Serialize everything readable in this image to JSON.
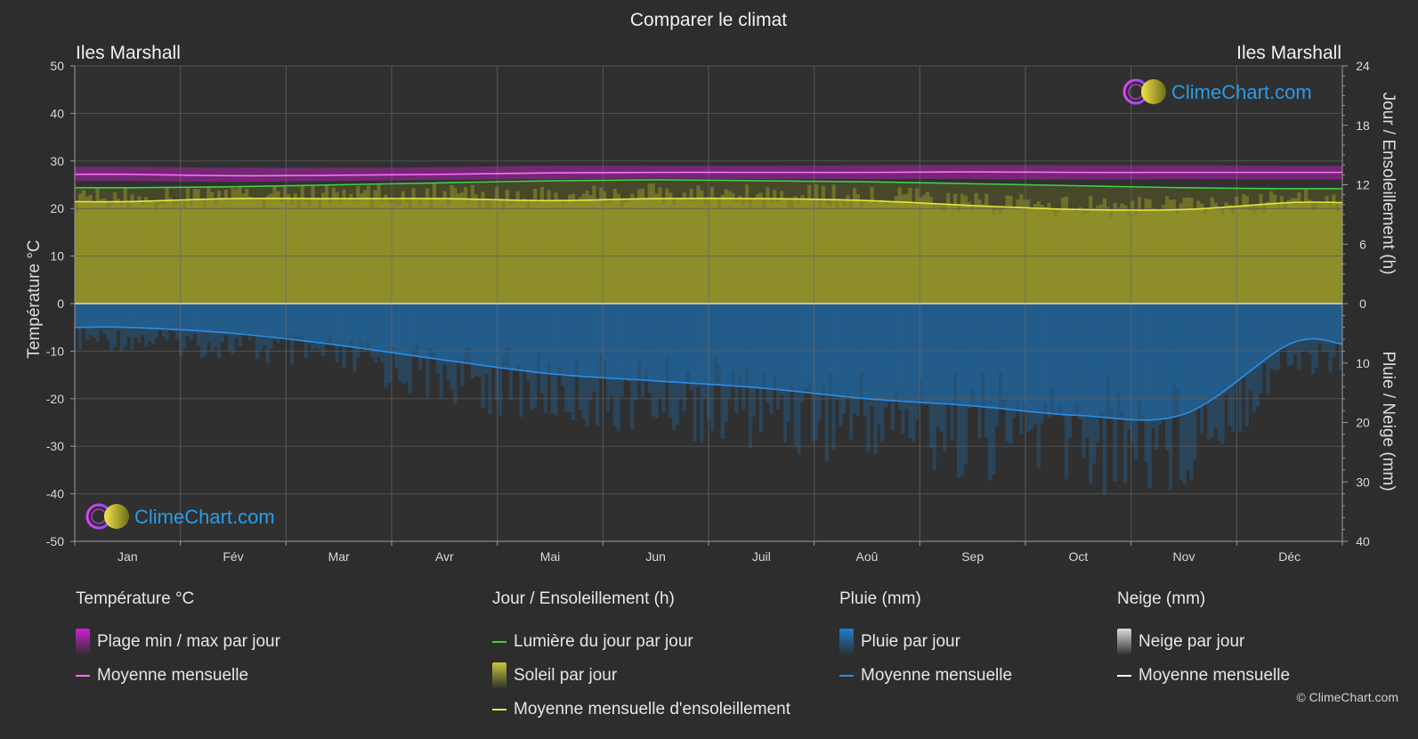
{
  "title": "Comparer le climat",
  "location_left": "Iles Marshall",
  "location_right": "Iles Marshall",
  "axis_left_label": "Température °C",
  "axis_right_top_label": "Jour / Ensoleillement (h)",
  "axis_right_bottom_label": "Pluie / Neige (mm)",
  "brand": "ClimeChart.com",
  "copyright": "© ClimeChart.com",
  "colors": {
    "background": "#2d2d2d",
    "temp_band": "#c81fc8",
    "temp_mean": "#ff6bff",
    "daylight": "#3fd13f",
    "sunshine_fill": "#9a9a2a",
    "sunshine_mean": "#e6e640",
    "rain": "#1e6fb0",
    "rain_mean": "#2a8ee8",
    "snow_mean": "#ffffff",
    "brand_text": "#2a9be8"
  },
  "legend": {
    "temperature": {
      "heading": "Température °C",
      "items": [
        {
          "label": "Plage min / max par jour",
          "swatch": "box",
          "color": "#d21fd2"
        },
        {
          "label": "Moyenne mensuelle",
          "swatch": "line",
          "color": "#ff6bff"
        }
      ]
    },
    "sun": {
      "heading": "Jour / Ensoleillement (h)",
      "items": [
        {
          "label": "Lumière du jour par jour",
          "swatch": "line",
          "color": "#3fd13f"
        },
        {
          "label": "Soleil par jour",
          "swatch": "box",
          "color": "#c8c83a"
        },
        {
          "label": "Moyenne mensuelle d'ensoleillement",
          "swatch": "line",
          "color": "#e6e640"
        }
      ]
    },
    "rain": {
      "heading": "Pluie (mm)",
      "items": [
        {
          "label": "Pluie par jour",
          "swatch": "box",
          "color": "#1e7fd0"
        },
        {
          "label": "Moyenne mensuelle",
          "swatch": "line",
          "color": "#2a8ee8"
        }
      ]
    },
    "snow": {
      "heading": "Neige (mm)",
      "items": [
        {
          "label": "Neige par jour",
          "swatch": "box",
          "color": "#dddddd"
        },
        {
          "label": "Moyenne mensuelle",
          "swatch": "line",
          "color": "#ffffff"
        }
      ]
    }
  },
  "chart_data": {
    "type": "line",
    "title": "Comparer le climat",
    "months": [
      "Jan",
      "Fév",
      "Mar",
      "Avr",
      "Mai",
      "Jun",
      "Juil",
      "Aoû",
      "Sep",
      "Oct",
      "Nov",
      "Déc"
    ],
    "temp_axis": {
      "label": "Température °C",
      "range": [
        -50,
        50
      ],
      "ticks": [
        50,
        40,
        30,
        20,
        10,
        0,
        -10,
        -20,
        -30,
        -40,
        -50
      ]
    },
    "sun_axis": {
      "label": "Jour / Ensoleillement (h)",
      "range": [
        0,
        24
      ],
      "ticks": [
        24,
        18,
        12,
        6,
        0
      ]
    },
    "precip_axis": {
      "label": "Pluie / Neige (mm)",
      "range": [
        0,
        40
      ],
      "ticks": [
        0,
        10,
        20,
        30,
        40
      ]
    },
    "grid": true,
    "series": [
      {
        "name": "Moyenne mensuelle",
        "kind": "temp_mean",
        "axis": "temp",
        "values": [
          27.2,
          26.9,
          27.0,
          27.2,
          27.5,
          27.6,
          27.6,
          27.6,
          27.7,
          27.6,
          27.6,
          27.6
        ]
      },
      {
        "name": "Plage min / max par jour",
        "kind": "temp_range",
        "axis": "temp",
        "min": [
          25.8,
          25.6,
          25.8,
          26.0,
          26.2,
          26.3,
          26.2,
          26.2,
          26.2,
          26.1,
          26.2,
          26.1
        ],
        "max": [
          28.8,
          28.6,
          28.6,
          28.7,
          29.0,
          29.0,
          29.0,
          29.1,
          29.2,
          29.1,
          29.1,
          29.0
        ]
      },
      {
        "name": "Lumière du jour par jour",
        "kind": "daylight",
        "axis": "sun",
        "values": [
          11.7,
          11.8,
          12.0,
          12.2,
          12.4,
          12.5,
          12.4,
          12.3,
          12.1,
          11.9,
          11.7,
          11.6
        ]
      },
      {
        "name": "Soleil par jour",
        "kind": "sunshine_area",
        "axis": "sun",
        "values": [
          10.3,
          10.6,
          10.6,
          10.6,
          10.4,
          10.6,
          10.6,
          10.4,
          9.9,
          9.5,
          9.5,
          10.2
        ]
      },
      {
        "name": "Moyenne mensuelle d'ensoleillement",
        "kind": "sunshine_mean",
        "axis": "sun",
        "values": [
          10.3,
          10.6,
          10.6,
          10.6,
          10.4,
          10.6,
          10.6,
          10.4,
          9.9,
          9.5,
          9.5,
          10.2
        ]
      },
      {
        "name": "Pluie par jour",
        "kind": "rain_area",
        "axis": "precip",
        "values": [
          4.0,
          5.0,
          7.0,
          9.5,
          11.8,
          13.0,
          14.2,
          16.0,
          17.2,
          18.8,
          18.6,
          6.8
        ]
      },
      {
        "name": "Moyenne mensuelle",
        "kind": "rain_mean",
        "axis": "precip",
        "values": [
          4.0,
          5.0,
          7.0,
          9.5,
          11.8,
          13.0,
          14.2,
          16.0,
          17.2,
          18.8,
          18.6,
          6.8
        ]
      }
    ]
  }
}
